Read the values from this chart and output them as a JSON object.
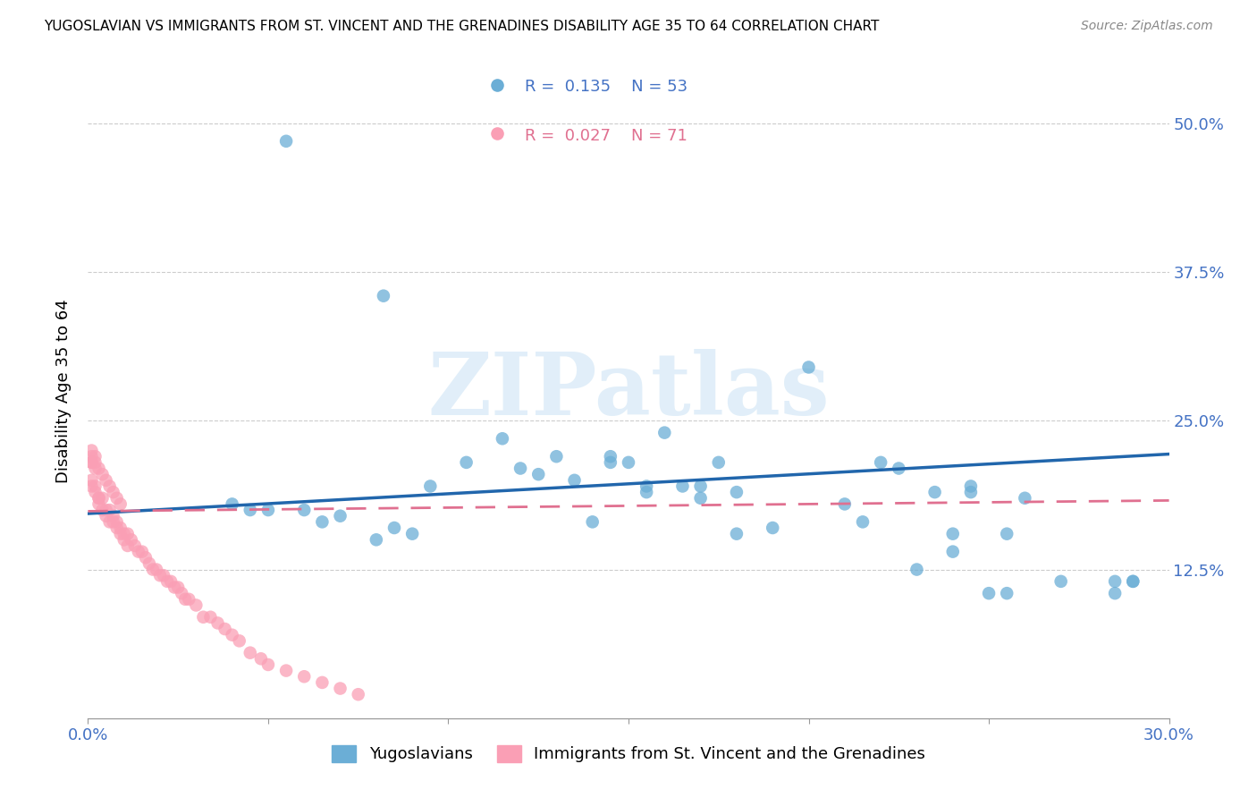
{
  "title": "YUGOSLAVIAN VS IMMIGRANTS FROM ST. VINCENT AND THE GRENADINES DISABILITY AGE 35 TO 64 CORRELATION CHART",
  "source": "Source: ZipAtlas.com",
  "ylabel": "Disability Age 35 to 64",
  "xlim": [
    0.0,
    0.3
  ],
  "ylim": [
    0.0,
    0.55
  ],
  "yticks": [
    0.125,
    0.25,
    0.375,
    0.5
  ],
  "ytick_labels": [
    "12.5%",
    "25.0%",
    "37.5%",
    "50.0%"
  ],
  "xticks": [
    0.0,
    0.05,
    0.1,
    0.15,
    0.2,
    0.25,
    0.3
  ],
  "xtick_labels": [
    "0.0%",
    "",
    "",
    "",
    "",
    "",
    "30.0%"
  ],
  "blue_R": 0.135,
  "blue_N": 53,
  "pink_R": 0.027,
  "pink_N": 71,
  "blue_color": "#6baed6",
  "pink_color": "#fa9fb5",
  "trend_blue_color": "#2166ac",
  "trend_pink_color": "#e07090",
  "watermark": "ZIPatlas",
  "legend_blue_label": "Yugoslavians",
  "legend_pink_label": "Immigrants from St. Vincent and the Grenadines",
  "blue_trend_x": [
    0.0,
    0.3
  ],
  "blue_trend_y": [
    0.172,
    0.222
  ],
  "pink_trend_x": [
    0.0,
    0.3
  ],
  "pink_trend_y": [
    0.174,
    0.183
  ],
  "blue_points_x": [
    0.055,
    0.082,
    0.095,
    0.105,
    0.115,
    0.12,
    0.125,
    0.13,
    0.135,
    0.14,
    0.145,
    0.145,
    0.15,
    0.155,
    0.155,
    0.16,
    0.165,
    0.17,
    0.175,
    0.18,
    0.19,
    0.2,
    0.21,
    0.215,
    0.22,
    0.225,
    0.23,
    0.235,
    0.24,
    0.245,
    0.245,
    0.25,
    0.255,
    0.255,
    0.26,
    0.27,
    0.285,
    0.29,
    0.04,
    0.045,
    0.05,
    0.06,
    0.065,
    0.07,
    0.08,
    0.085,
    0.09,
    0.17,
    0.18,
    0.24,
    0.285,
    0.29
  ],
  "blue_points_y": [
    0.485,
    0.355,
    0.195,
    0.215,
    0.235,
    0.21,
    0.205,
    0.22,
    0.2,
    0.165,
    0.215,
    0.22,
    0.215,
    0.195,
    0.19,
    0.24,
    0.195,
    0.195,
    0.215,
    0.19,
    0.16,
    0.295,
    0.18,
    0.165,
    0.215,
    0.21,
    0.125,
    0.19,
    0.155,
    0.19,
    0.195,
    0.105,
    0.105,
    0.155,
    0.185,
    0.115,
    0.105,
    0.115,
    0.18,
    0.175,
    0.175,
    0.175,
    0.165,
    0.17,
    0.15,
    0.16,
    0.155,
    0.185,
    0.155,
    0.14,
    0.115,
    0.115
  ],
  "pink_points_x": [
    0.001,
    0.001,
    0.001,
    0.001,
    0.002,
    0.002,
    0.002,
    0.003,
    0.003,
    0.003,
    0.004,
    0.004,
    0.005,
    0.005,
    0.006,
    0.006,
    0.007,
    0.007,
    0.008,
    0.008,
    0.009,
    0.009,
    0.01,
    0.01,
    0.011,
    0.011,
    0.012,
    0.013,
    0.014,
    0.015,
    0.016,
    0.017,
    0.018,
    0.019,
    0.02,
    0.021,
    0.022,
    0.023,
    0.024,
    0.025,
    0.026,
    0.027,
    0.028,
    0.03,
    0.032,
    0.034,
    0.036,
    0.038,
    0.04,
    0.042,
    0.045,
    0.048,
    0.05,
    0.055,
    0.06,
    0.065,
    0.07,
    0.075,
    0.001,
    0.001,
    0.002,
    0.002,
    0.003,
    0.004,
    0.005,
    0.006,
    0.007,
    0.008,
    0.009
  ],
  "pink_points_y": [
    0.215,
    0.215,
    0.2,
    0.195,
    0.21,
    0.19,
    0.195,
    0.185,
    0.185,
    0.18,
    0.185,
    0.175,
    0.175,
    0.17,
    0.175,
    0.165,
    0.17,
    0.165,
    0.165,
    0.16,
    0.16,
    0.155,
    0.155,
    0.15,
    0.155,
    0.145,
    0.15,
    0.145,
    0.14,
    0.14,
    0.135,
    0.13,
    0.125,
    0.125,
    0.12,
    0.12,
    0.115,
    0.115,
    0.11,
    0.11,
    0.105,
    0.1,
    0.1,
    0.095,
    0.085,
    0.085,
    0.08,
    0.075,
    0.07,
    0.065,
    0.055,
    0.05,
    0.045,
    0.04,
    0.035,
    0.03,
    0.025,
    0.02,
    0.225,
    0.22,
    0.22,
    0.215,
    0.21,
    0.205,
    0.2,
    0.195,
    0.19,
    0.185,
    0.18
  ]
}
